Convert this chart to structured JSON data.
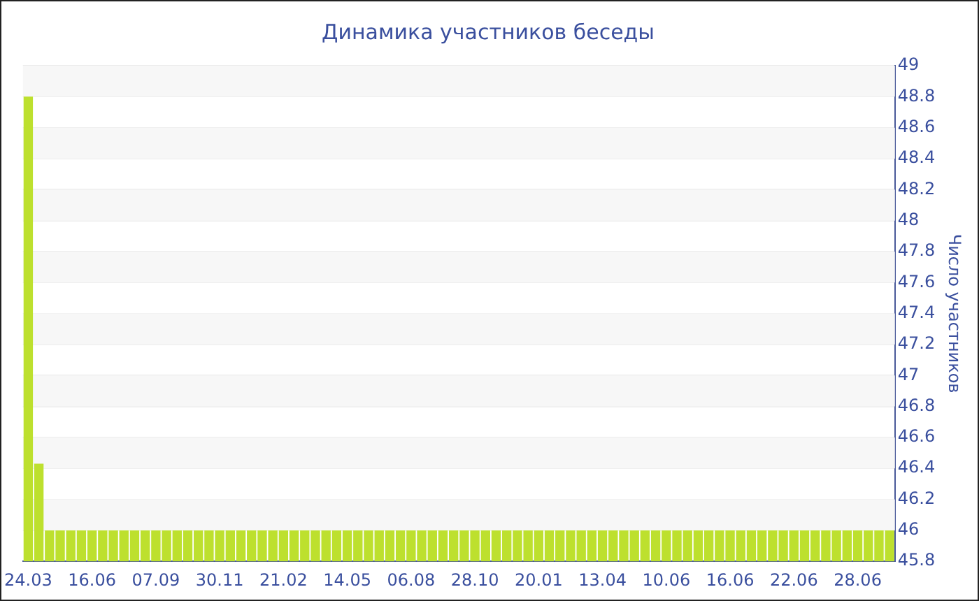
{
  "chart_data": {
    "type": "bar",
    "title": "Динамика участников беседы",
    "ylabel": "Число участников",
    "categories": [
      "24.03",
      null,
      null,
      null,
      null,
      null,
      "16.06",
      null,
      null,
      null,
      null,
      null,
      "07.09",
      null,
      null,
      null,
      null,
      null,
      "30.11",
      null,
      null,
      null,
      null,
      null,
      "21.02",
      null,
      null,
      null,
      null,
      null,
      "14.05",
      null,
      null,
      null,
      null,
      null,
      "06.08",
      null,
      null,
      null,
      null,
      null,
      "28.10",
      null,
      null,
      null,
      null,
      null,
      "20.01",
      null,
      null,
      null,
      null,
      null,
      "13.04",
      null,
      null,
      null,
      null,
      null,
      "10.06",
      null,
      null,
      null,
      null,
      null,
      "16.06",
      null,
      null,
      null,
      null,
      null,
      "22.06",
      null,
      null,
      null,
      null,
      null,
      "28.06",
      null,
      null,
      null
    ],
    "values": [
      48.8,
      46.43,
      46,
      46,
      46,
      46,
      46,
      46,
      46,
      46,
      46,
      46,
      46,
      46,
      46,
      46,
      46,
      46,
      46,
      46,
      46,
      46,
      46,
      46,
      46,
      46,
      46,
      46,
      46,
      46,
      46,
      46,
      46,
      46,
      46,
      46,
      46,
      46,
      46,
      46,
      46,
      46,
      46,
      46,
      46,
      46,
      46,
      46,
      46,
      46,
      46,
      46,
      46,
      46,
      46,
      46,
      46,
      46,
      46,
      46,
      46,
      46,
      46,
      46,
      46,
      46,
      46,
      46,
      46,
      46,
      46,
      46,
      46,
      46,
      46,
      46,
      46,
      46,
      46,
      46,
      46,
      46
    ],
    "color": "#bde02e",
    "ylim": [
      45.8,
      49
    ],
    "yticks": [
      45.8,
      46,
      46.2,
      46.4,
      46.6,
      46.8,
      47,
      47.2,
      47.4,
      47.6,
      47.8,
      48,
      48.2,
      48.4,
      48.6,
      48.8,
      49
    ],
    "grid": "y"
  }
}
